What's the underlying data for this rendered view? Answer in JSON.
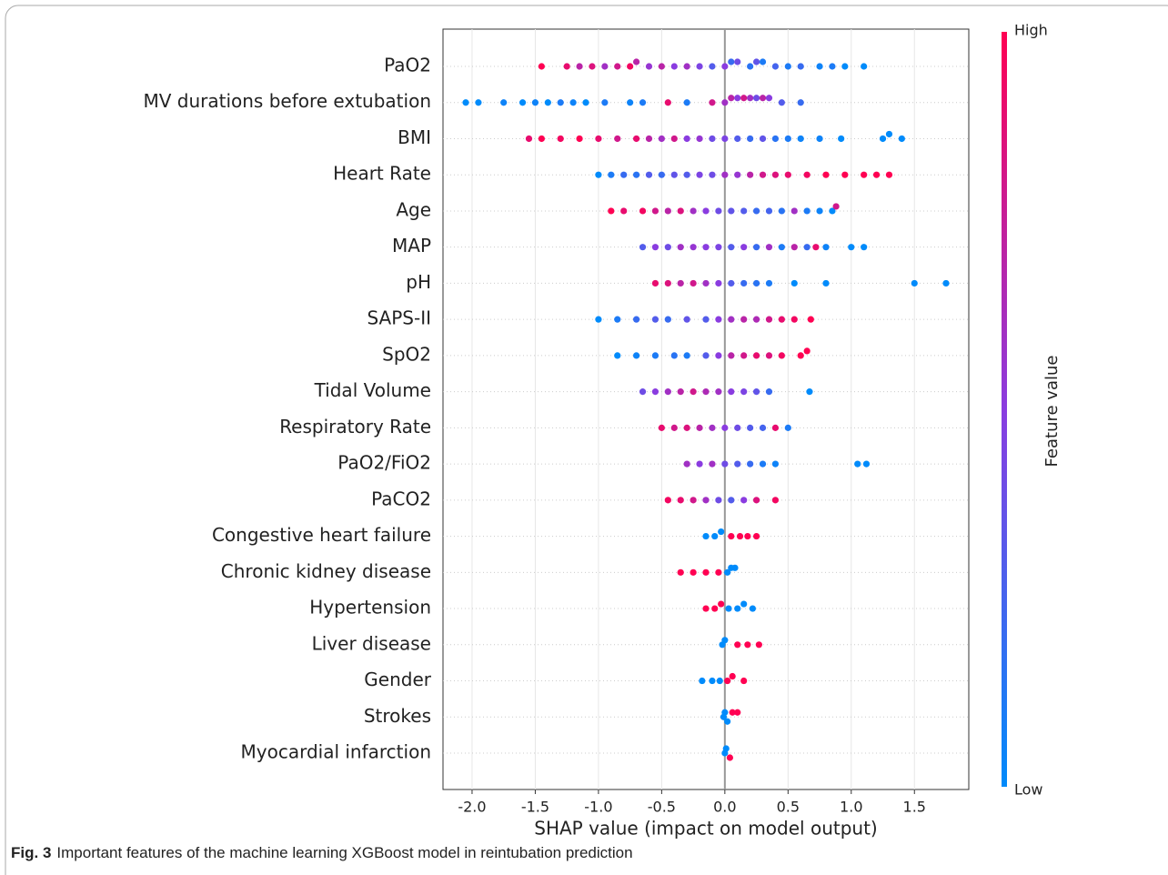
{
  "chart_data": {
    "type": "beeswarm",
    "xlabel": "SHAP value (impact on model output)",
    "xlim": [
      -2.23,
      1.93
    ],
    "xticks": [
      {
        "value": -2,
        "label": "-2.0"
      },
      -1.5,
      {
        "value": -1,
        "label": "-1.0"
      },
      -0.5,
      {
        "value": 0,
        "label": "0.0"
      },
      0.5,
      {
        "value": 1,
        "label": "1.0"
      },
      1.5
    ],
    "grid": true,
    "colormap": [
      "#008bfb",
      "#8a3ce0",
      "#ff0052"
    ],
    "colorbar": {
      "label": "Feature value",
      "high": "High",
      "low": "Low"
    },
    "series": [
      {
        "name": "PaO2",
        "points": [
          [
            -1.45,
            1
          ],
          [
            -1.25,
            0.9
          ],
          [
            -1.15,
            0.7
          ],
          [
            -1.05,
            0.85
          ],
          [
            -0.95,
            0.6
          ],
          [
            -0.85,
            0.8
          ],
          [
            -0.75,
            0.95
          ],
          [
            -0.7,
            0.7
          ],
          [
            -0.6,
            0.55
          ],
          [
            -0.5,
            0.7
          ],
          [
            -0.4,
            0.5
          ],
          [
            -0.3,
            0.6
          ],
          [
            -0.2,
            0.45
          ],
          [
            -0.1,
            0.3
          ],
          [
            0,
            0.5
          ],
          [
            0.05,
            0.2
          ],
          [
            0.1,
            0.4
          ],
          [
            0.2,
            0.15
          ],
          [
            0.25,
            0.35
          ],
          [
            0.3,
            0.1
          ],
          [
            0.4,
            0.25
          ],
          [
            0.5,
            0.1
          ],
          [
            0.6,
            0.2
          ],
          [
            0.75,
            0.05
          ],
          [
            0.85,
            0.1
          ],
          [
            0.95,
            0
          ],
          [
            1.1,
            0
          ]
        ]
      },
      {
        "name": "MV durations before extubation",
        "points": [
          [
            -2.05,
            0
          ],
          [
            -1.95,
            0
          ],
          [
            -1.75,
            0.05
          ],
          [
            -1.6,
            0
          ],
          [
            -1.5,
            0.05
          ],
          [
            -1.4,
            0
          ],
          [
            -1.3,
            0.1
          ],
          [
            -1.2,
            0.05
          ],
          [
            -1.1,
            0
          ],
          [
            -0.95,
            0.1
          ],
          [
            -0.75,
            0.05
          ],
          [
            -0.65,
            0.1
          ],
          [
            -0.45,
            0.9
          ],
          [
            -0.3,
            0.1
          ],
          [
            -0.1,
            0.8
          ],
          [
            0,
            0.6
          ],
          [
            0.05,
            0.7
          ],
          [
            0.1,
            0.5
          ],
          [
            0.15,
            0.8
          ],
          [
            0.2,
            0.6
          ],
          [
            0.25,
            0.4
          ],
          [
            0.3,
            0.7
          ],
          [
            0.35,
            0.5
          ],
          [
            0.45,
            0.3
          ],
          [
            0.6,
            0.2
          ]
        ]
      },
      {
        "name": "BMI",
        "points": [
          [
            -1.55,
            0.9
          ],
          [
            -1.45,
            1
          ],
          [
            -1.3,
            0.95
          ],
          [
            -1.15,
            1
          ],
          [
            -1.0,
            0.9
          ],
          [
            -0.85,
            0.8
          ],
          [
            -0.7,
            0.9
          ],
          [
            -0.6,
            0.7
          ],
          [
            -0.5,
            0.6
          ],
          [
            -0.4,
            0.8
          ],
          [
            -0.3,
            0.5
          ],
          [
            -0.2,
            0.55
          ],
          [
            -0.1,
            0.4
          ],
          [
            0,
            0.45
          ],
          [
            0.1,
            0.3
          ],
          [
            0.2,
            0.2
          ],
          [
            0.3,
            0.35
          ],
          [
            0.4,
            0.15
          ],
          [
            0.5,
            0.1
          ],
          [
            0.6,
            0.05
          ],
          [
            0.75,
            0.05
          ],
          [
            0.92,
            0
          ],
          [
            1.25,
            0
          ],
          [
            1.3,
            0
          ],
          [
            1.4,
            0
          ]
        ]
      },
      {
        "name": "Heart Rate",
        "points": [
          [
            -1.0,
            0
          ],
          [
            -0.9,
            0.1
          ],
          [
            -0.8,
            0.2
          ],
          [
            -0.7,
            0.15
          ],
          [
            -0.6,
            0.3
          ],
          [
            -0.5,
            0.2
          ],
          [
            -0.4,
            0.35
          ],
          [
            -0.3,
            0.3
          ],
          [
            -0.2,
            0.45
          ],
          [
            -0.1,
            0.4
          ],
          [
            0,
            0.6
          ],
          [
            0.1,
            0.55
          ],
          [
            0.2,
            0.7
          ],
          [
            0.3,
            0.8
          ],
          [
            0.4,
            0.85
          ],
          [
            0.5,
            0.9
          ],
          [
            0.65,
            0.95
          ],
          [
            0.8,
            1
          ],
          [
            0.95,
            1
          ],
          [
            1.1,
            1
          ],
          [
            1.2,
            1
          ],
          [
            1.3,
            1
          ]
        ]
      },
      {
        "name": "Age",
        "points": [
          [
            -0.9,
            1
          ],
          [
            -0.8,
            0.9
          ],
          [
            -0.65,
            0.95
          ],
          [
            -0.55,
            0.8
          ],
          [
            -0.45,
            0.7
          ],
          [
            -0.35,
            0.85
          ],
          [
            -0.25,
            0.6
          ],
          [
            -0.15,
            0.5
          ],
          [
            -0.05,
            0.4
          ],
          [
            0.05,
            0.35
          ],
          [
            0.15,
            0.3
          ],
          [
            0.25,
            0.2
          ],
          [
            0.35,
            0.25
          ],
          [
            0.45,
            0.15
          ],
          [
            0.55,
            0.6
          ],
          [
            0.65,
            0.1
          ],
          [
            0.75,
            0.05
          ],
          [
            0.85,
            0
          ],
          [
            0.88,
            0.8
          ]
        ]
      },
      {
        "name": "MAP",
        "points": [
          [
            -0.65,
            0.3
          ],
          [
            -0.55,
            0.5
          ],
          [
            -0.45,
            0.4
          ],
          [
            -0.35,
            0.6
          ],
          [
            -0.25,
            0.55
          ],
          [
            -0.15,
            0.5
          ],
          [
            -0.05,
            0.45
          ],
          [
            0.05,
            0.3
          ],
          [
            0.15,
            0.5
          ],
          [
            0.25,
            0.2
          ],
          [
            0.35,
            0.6
          ],
          [
            0.45,
            0.1
          ],
          [
            0.55,
            0.7
          ],
          [
            0.65,
            0.2
          ],
          [
            0.72,
            0.9
          ],
          [
            0.8,
            0.05
          ],
          [
            1.0,
            0
          ],
          [
            1.1,
            0
          ]
        ]
      },
      {
        "name": "pH",
        "points": [
          [
            -0.55,
            0.9
          ],
          [
            -0.45,
            0.85
          ],
          [
            -0.35,
            0.7
          ],
          [
            -0.25,
            0.8
          ],
          [
            -0.15,
            0.6
          ],
          [
            -0.05,
            0.5
          ],
          [
            0.05,
            0.3
          ],
          [
            0.15,
            0.2
          ],
          [
            0.25,
            0.15
          ],
          [
            0.35,
            0.1
          ],
          [
            0.55,
            0
          ],
          [
            0.8,
            0
          ],
          [
            1.5,
            0
          ],
          [
            1.75,
            0
          ]
        ]
      },
      {
        "name": "SAPS-II",
        "points": [
          [
            -1.0,
            0
          ],
          [
            -0.85,
            0.1
          ],
          [
            -0.7,
            0.2
          ],
          [
            -0.55,
            0.3
          ],
          [
            -0.45,
            0.2
          ],
          [
            -0.3,
            0.35
          ],
          [
            -0.15,
            0.3
          ],
          [
            -0.05,
            0.5
          ],
          [
            0.05,
            0.6
          ],
          [
            0.15,
            0.7
          ],
          [
            0.25,
            0.65
          ],
          [
            0.35,
            0.8
          ],
          [
            0.45,
            0.9
          ],
          [
            0.55,
            0.95
          ],
          [
            0.68,
            1
          ]
        ]
      },
      {
        "name": "SpO2",
        "points": [
          [
            -0.85,
            0
          ],
          [
            -0.7,
            0.05
          ],
          [
            -0.55,
            0.1
          ],
          [
            -0.4,
            0.15
          ],
          [
            -0.3,
            0.1
          ],
          [
            -0.15,
            0.3
          ],
          [
            -0.05,
            0.5
          ],
          [
            0.05,
            0.7
          ],
          [
            0.15,
            0.8
          ],
          [
            0.25,
            0.9
          ],
          [
            0.35,
            0.85
          ],
          [
            0.45,
            0.95
          ],
          [
            0.6,
            1
          ],
          [
            0.65,
            1
          ]
        ]
      },
      {
        "name": "Tidal Volume",
        "points": [
          [
            -0.65,
            0.4
          ],
          [
            -0.55,
            0.5
          ],
          [
            -0.45,
            0.6
          ],
          [
            -0.35,
            0.7
          ],
          [
            -0.25,
            0.8
          ],
          [
            -0.15,
            0.65
          ],
          [
            -0.05,
            0.6
          ],
          [
            0.05,
            0.5
          ],
          [
            0.15,
            0.45
          ],
          [
            0.25,
            0.35
          ],
          [
            0.35,
            0.2
          ],
          [
            0.67,
            0
          ]
        ]
      },
      {
        "name": "Respiratory Rate",
        "points": [
          [
            -0.5,
            0.9
          ],
          [
            -0.4,
            0.8
          ],
          [
            -0.3,
            0.85
          ],
          [
            -0.2,
            0.7
          ],
          [
            -0.1,
            0.6
          ],
          [
            0,
            0.5
          ],
          [
            0.1,
            0.4
          ],
          [
            0.2,
            0.3
          ],
          [
            0.3,
            0.25
          ],
          [
            0.4,
            0.9
          ],
          [
            0.5,
            0.1
          ]
        ]
      },
      {
        "name": "PaO2/FiO2",
        "points": [
          [
            -0.3,
            0.6
          ],
          [
            -0.2,
            0.5
          ],
          [
            -0.1,
            0.6
          ],
          [
            0,
            0.4
          ],
          [
            0.1,
            0.3
          ],
          [
            0.2,
            0.2
          ],
          [
            0.3,
            0.1
          ],
          [
            0.4,
            0.05
          ],
          [
            1.05,
            0
          ],
          [
            1.12,
            0
          ]
        ]
      },
      {
        "name": "PaCO2",
        "points": [
          [
            -0.45,
            0.95
          ],
          [
            -0.35,
            0.9
          ],
          [
            -0.25,
            0.8
          ],
          [
            -0.15,
            0.6
          ],
          [
            -0.05,
            0.4
          ],
          [
            0.05,
            0.3
          ],
          [
            0.15,
            0.5
          ],
          [
            0.25,
            0.85
          ],
          [
            0.4,
            0.95
          ]
        ]
      },
      {
        "name": "Congestive heart failure",
        "points": [
          [
            -0.15,
            0
          ],
          [
            -0.08,
            0
          ],
          [
            -0.03,
            0
          ],
          [
            0.05,
            1
          ],
          [
            0.12,
            1
          ],
          [
            0.18,
            1
          ],
          [
            0.25,
            1
          ]
        ]
      },
      {
        "name": "Chronic kidney disease",
        "points": [
          [
            -0.35,
            1
          ],
          [
            -0.25,
            1
          ],
          [
            -0.15,
            1
          ],
          [
            -0.05,
            1
          ],
          [
            0.02,
            0
          ],
          [
            0.05,
            0
          ],
          [
            0.08,
            0
          ]
        ]
      },
      {
        "name": "Hypertension",
        "points": [
          [
            -0.15,
            1
          ],
          [
            -0.08,
            1
          ],
          [
            -0.03,
            1
          ],
          [
            0.03,
            0
          ],
          [
            0.1,
            0
          ],
          [
            0.15,
            0
          ],
          [
            0.22,
            0
          ]
        ]
      },
      {
        "name": "Liver disease",
        "points": [
          [
            -0.02,
            0
          ],
          [
            0,
            0
          ],
          [
            0.1,
            1
          ],
          [
            0.18,
            1
          ],
          [
            0.27,
            1
          ]
        ]
      },
      {
        "name": "Gender",
        "points": [
          [
            -0.18,
            0
          ],
          [
            -0.1,
            0
          ],
          [
            -0.04,
            0
          ],
          [
            0.02,
            1
          ],
          [
            0.06,
            1
          ],
          [
            0.15,
            1
          ]
        ]
      },
      {
        "name": "Strokes",
        "points": [
          [
            -0.01,
            0
          ],
          [
            0,
            0
          ],
          [
            0.02,
            0
          ],
          [
            0.06,
            1
          ],
          [
            0.1,
            1
          ]
        ]
      },
      {
        "name": "Myocardial infarction",
        "points": [
          [
            0,
            0
          ],
          [
            0.01,
            0
          ],
          [
            0.04,
            1
          ]
        ]
      }
    ]
  },
  "caption": {
    "label": "Fig. 3",
    "text": "Important features of the machine learning XGBoost model in reintubation prediction"
  }
}
